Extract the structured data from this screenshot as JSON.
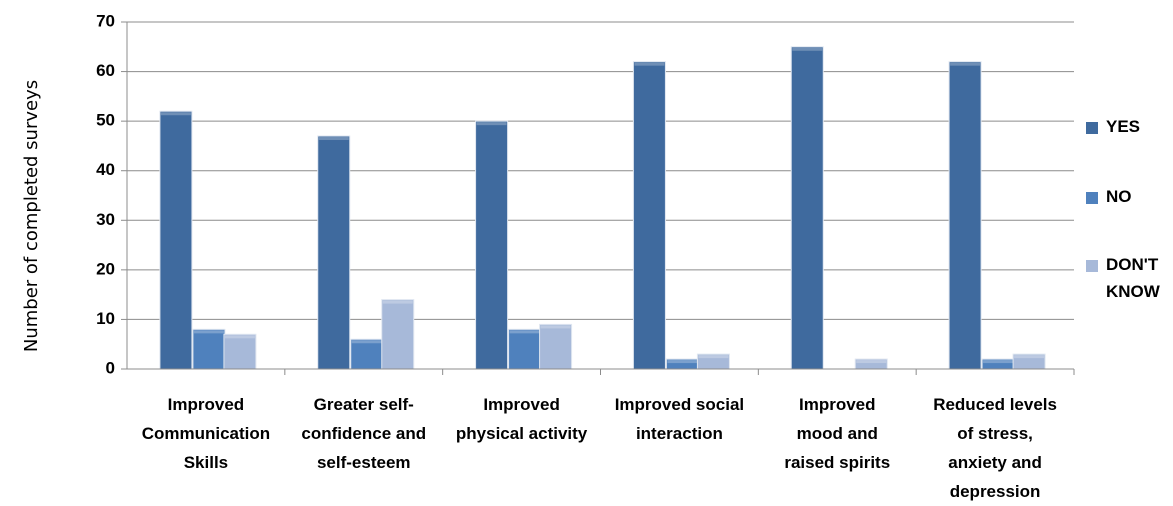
{
  "chart_data": {
    "type": "bar",
    "title": "",
    "xlabel": "",
    "ylabel": "Number of completed surveys",
    "ylim": [
      0,
      70
    ],
    "yticks": [
      "0",
      "10",
      "20",
      "30",
      "40",
      "50",
      "60",
      "70"
    ],
    "grid": true,
    "legend_position": "right",
    "categories": [
      [
        "Improved",
        "Communication",
        "Skills"
      ],
      [
        "Greater self-",
        "confidence and",
        "self-esteem"
      ],
      [
        "Improved",
        "physical activity"
      ],
      [
        "Improved social",
        "interaction"
      ],
      [
        "Improved",
        "mood and",
        "raised spirits"
      ],
      [
        "Reduced levels",
        "of stress,",
        "anxiety and",
        "depression"
      ]
    ],
    "series": [
      {
        "name": "YES",
        "legend_lines": [
          "YES"
        ],
        "color": "#3F6A9E",
        "values": [
          52,
          47,
          50,
          62,
          65,
          62
        ]
      },
      {
        "name": "NO",
        "legend_lines": [
          "NO"
        ],
        "color": "#4F81BD",
        "values": [
          8,
          6,
          8,
          2,
          0,
          2
        ]
      },
      {
        "name": "DON'T KNOW",
        "legend_lines": [
          "DON'T",
          "KNOW"
        ],
        "color": "#A7B9D9",
        "values": [
          7,
          14,
          9,
          3,
          2,
          3
        ]
      }
    ]
  }
}
